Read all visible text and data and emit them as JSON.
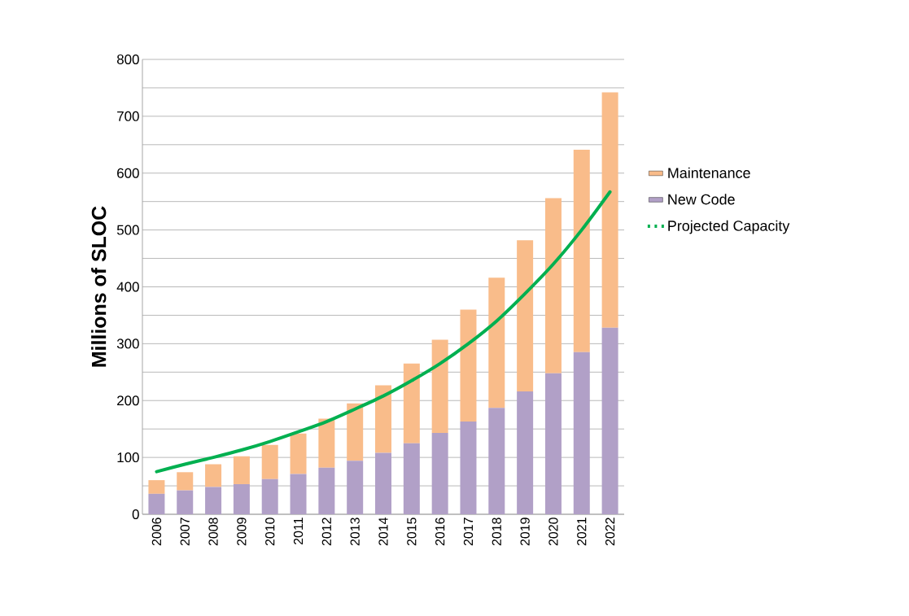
{
  "chart_data": {
    "type": "bar",
    "stacked": true,
    "ylabel": "Millions of SLOC",
    "categories": [
      "2006",
      "2007",
      "2008",
      "2009",
      "2010",
      "2011",
      "2012",
      "2013",
      "2014",
      "2015",
      "2016",
      "2017",
      "2018",
      "2019",
      "2020",
      "2021",
      "2022"
    ],
    "series": [
      {
        "name": "New Code",
        "color": "#b1a0c7",
        "values": [
          36,
          42,
          48,
          53,
          62,
          71,
          82,
          94,
          108,
          125,
          143,
          163,
          187,
          216,
          248,
          285,
          328
        ]
      },
      {
        "name": "Maintenance",
        "color": "#f9bc8a",
        "values": [
          24,
          32,
          40,
          49,
          60,
          71,
          86,
          101,
          119,
          140,
          164,
          197,
          229,
          266,
          308,
          356,
          414
        ]
      },
      {
        "name": "Projected Capacity",
        "type": "line",
        "color": "#00b050",
        "values": [
          75,
          88,
          100,
          113,
          128,
          145,
          163,
          185,
          208,
          235,
          265,
          300,
          340,
          388,
          440,
          500,
          567
        ]
      }
    ],
    "ylim": [
      0,
      800
    ],
    "yticks": [
      0,
      {
        "value": 50,
        "label": null
      },
      100,
      {
        "value": 150,
        "label": null
      },
      200,
      {
        "value": 250,
        "label": null
      },
      300,
      {
        "value": 350,
        "label": null
      },
      400,
      {
        "value": 450,
        "label": null
      },
      500,
      {
        "value": 550,
        "label": null
      },
      600,
      {
        "value": 650,
        "label": null
      },
      700,
      {
        "value": 750,
        "label": null
      },
      800
    ],
    "grid": "y",
    "legend": "right",
    "marker": "none",
    "line_style": "solid"
  }
}
